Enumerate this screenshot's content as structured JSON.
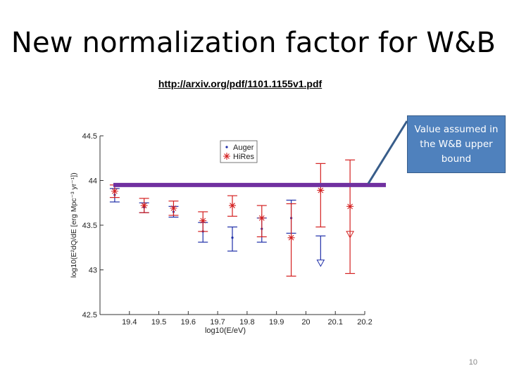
{
  "slide": {
    "title": "New normalization factor for W&B",
    "link": "http://arxiv.org/pdf/1101.1155v1.pdf",
    "callout": "Value assumed in the W&B upper bound",
    "page_number": "10"
  },
  "colors": {
    "auger": "#1f2fa8",
    "hires": "#d42020",
    "bound_line": "#7030a0",
    "callout_fill": "#4f81bd"
  },
  "chart_data": {
    "type": "scatter",
    "title": "",
    "xlabel": "log10(E/eV)",
    "ylabel": "log10(E²dQ/dE [erg Mpc⁻³ yr⁻¹])",
    "xlim": [
      19.3,
      20.2
    ],
    "ylim": [
      42.5,
      44.5
    ],
    "xticks": [
      "19.4",
      "19.5",
      "19.6",
      "19.7",
      "19.8",
      "19.9",
      "20",
      "20.1",
      "20.2"
    ],
    "yticks": [
      "42.5",
      "43",
      "43.5",
      "44",
      "44.5"
    ],
    "legend": {
      "placement": "top-center",
      "entries": [
        "Auger",
        "HiRes"
      ]
    },
    "series": [
      {
        "name": "Auger",
        "points": [
          {
            "x": 19.35,
            "y": 43.84,
            "ylo": 43.76,
            "yhi": 43.91,
            "upper_limit": false
          },
          {
            "x": 19.45,
            "y": 43.7,
            "ylo": 43.64,
            "yhi": 43.75,
            "upper_limit": false
          },
          {
            "x": 19.55,
            "y": 43.65,
            "ylo": 43.59,
            "yhi": 43.71,
            "upper_limit": false
          },
          {
            "x": 19.65,
            "y": 43.43,
            "ylo": 43.31,
            "yhi": 43.53,
            "upper_limit": false
          },
          {
            "x": 19.75,
            "y": 43.36,
            "ylo": 43.21,
            "yhi": 43.48,
            "upper_limit": false
          },
          {
            "x": 19.85,
            "y": 43.46,
            "ylo": 43.31,
            "yhi": 43.58,
            "upper_limit": false
          },
          {
            "x": 19.95,
            "y": 43.58,
            "ylo": 43.41,
            "yhi": 43.78,
            "upper_limit": false
          },
          {
            "x": 20.05,
            "y": 43.08,
            "ylo": 43.08,
            "yhi": 43.38,
            "upper_limit": true
          }
        ]
      },
      {
        "name": "HiRes",
        "points": [
          {
            "x": 19.35,
            "y": 43.88,
            "ylo": 43.81,
            "yhi": 43.95,
            "upper_limit": false
          },
          {
            "x": 19.45,
            "y": 43.72,
            "ylo": 43.64,
            "yhi": 43.8,
            "upper_limit": false
          },
          {
            "x": 19.55,
            "y": 43.69,
            "ylo": 43.61,
            "yhi": 43.77,
            "upper_limit": false
          },
          {
            "x": 19.65,
            "y": 43.55,
            "ylo": 43.43,
            "yhi": 43.65,
            "upper_limit": false
          },
          {
            "x": 19.75,
            "y": 43.72,
            "ylo": 43.6,
            "yhi": 43.83,
            "upper_limit": false
          },
          {
            "x": 19.85,
            "y": 43.58,
            "ylo": 43.37,
            "yhi": 43.72,
            "upper_limit": false
          },
          {
            "x": 19.95,
            "y": 43.36,
            "ylo": 42.93,
            "yhi": 43.74,
            "upper_limit": false
          },
          {
            "x": 20.05,
            "y": 43.89,
            "ylo": 43.48,
            "yhi": 44.19,
            "upper_limit": false
          },
          {
            "x": 20.15,
            "y": 43.71,
            "ylo": 42.96,
            "yhi": 44.23,
            "upper_limit": false
          },
          {
            "x": 20.15,
            "y": 43.4,
            "ylo": 43.4,
            "yhi": 43.4,
            "upper_limit": true
          }
        ]
      }
    ],
    "reference_line": {
      "y": 43.95
    }
  }
}
